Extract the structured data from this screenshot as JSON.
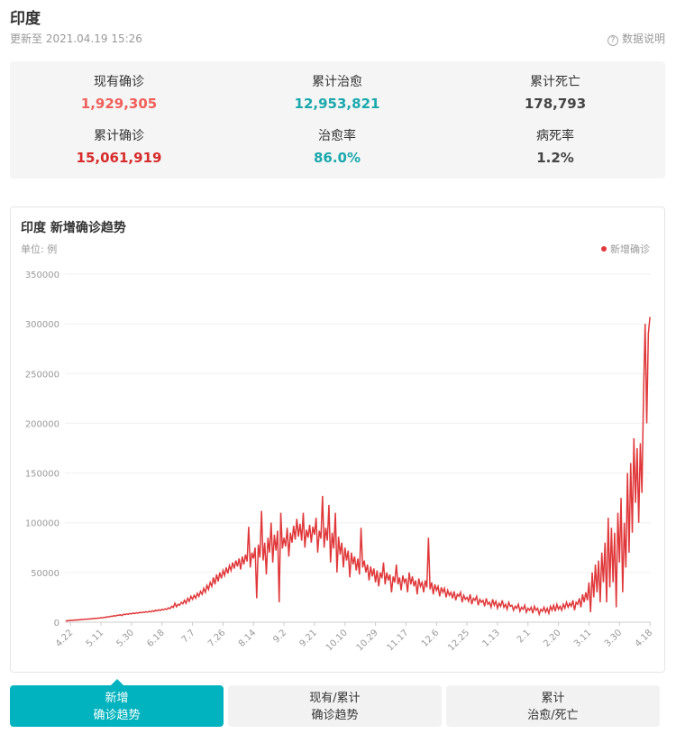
{
  "header": {
    "title": "印度",
    "updated": "更新至 2021.04.19 15:26",
    "help": "数据说明"
  },
  "summary": [
    {
      "label": "现有确诊",
      "value": "1,929,305",
      "color": "#f0605a"
    },
    {
      "label": "累计治愈",
      "value": "12,953,821",
      "color": "#1aa8ad"
    },
    {
      "label": "累计死亡",
      "value": "178,793",
      "color": "#444444"
    },
    {
      "label": "累计确诊",
      "value": "15,061,919",
      "color": "#d72b2b"
    },
    {
      "label": "治愈率",
      "value": "86.0%",
      "color": "#1aa8ad"
    },
    {
      "label": "病死率",
      "value": "1.2%",
      "color": "#444444"
    }
  ],
  "chart_data": {
    "type": "line",
    "title": "印度 新增确诊趋势",
    "unit": "单位: 例",
    "legend_position": "top-right",
    "grid": true,
    "ylim": [
      0,
      350000
    ],
    "yticks": [
      0,
      50000,
      100000,
      150000,
      200000,
      250000,
      300000,
      350000
    ],
    "categories": [
      null,
      null,
      null,
      "4.22",
      null,
      null,
      null,
      null,
      null,
      null,
      null,
      null,
      null,
      null,
      null,
      null,
      null,
      null,
      null,
      null,
      null,
      null,
      "5.11",
      null,
      null,
      null,
      null,
      null,
      null,
      null,
      null,
      null,
      null,
      null,
      null,
      null,
      null,
      null,
      null,
      null,
      null,
      "5.30",
      null,
      null,
      null,
      null,
      null,
      null,
      null,
      null,
      null,
      null,
      null,
      null,
      null,
      null,
      null,
      null,
      null,
      null,
      "6.18",
      null,
      null,
      null,
      null,
      null,
      null,
      null,
      null,
      null,
      null,
      null,
      null,
      null,
      null,
      null,
      null,
      null,
      null,
      "7.7",
      null,
      null,
      null,
      null,
      null,
      null,
      null,
      null,
      null,
      null,
      null,
      null,
      null,
      null,
      null,
      null,
      null,
      null,
      "7.26",
      null,
      null,
      null,
      null,
      null,
      null,
      null,
      null,
      null,
      null,
      null,
      null,
      null,
      null,
      null,
      null,
      null,
      null,
      "8.14",
      null,
      null,
      null,
      null,
      null,
      null,
      null,
      null,
      null,
      null,
      null,
      null,
      null,
      null,
      null,
      null,
      null,
      null,
      "9.2",
      null,
      null,
      null,
      null,
      null,
      null,
      null,
      null,
      null,
      null,
      null,
      null,
      null,
      null,
      null,
      null,
      null,
      null,
      "9.21",
      null,
      null,
      null,
      null,
      null,
      null,
      null,
      null,
      null,
      null,
      null,
      null,
      null,
      null,
      null,
      null,
      null,
      null,
      "10.10",
      null,
      null,
      null,
      null,
      null,
      null,
      null,
      null,
      null,
      null,
      null,
      null,
      null,
      null,
      null,
      null,
      null,
      null,
      "10.29",
      null,
      null,
      null,
      null,
      null,
      null,
      null,
      null,
      null,
      null,
      null,
      null,
      null,
      null,
      null,
      null,
      null,
      null,
      "11.17",
      null,
      null,
      null,
      null,
      null,
      null,
      null,
      null,
      null,
      null,
      null,
      null,
      null,
      null,
      null,
      null,
      null,
      null,
      "12.6",
      null,
      null,
      null,
      null,
      null,
      null,
      null,
      null,
      null,
      null,
      null,
      null,
      null,
      null,
      null,
      null,
      null,
      null,
      "12.25",
      null,
      null,
      null,
      null,
      null,
      null,
      null,
      null,
      null,
      null,
      null,
      null,
      null,
      null,
      null,
      null,
      null,
      null,
      "1.13",
      null,
      null,
      null,
      null,
      null,
      null,
      null,
      null,
      null,
      null,
      null,
      null,
      null,
      null,
      null,
      null,
      null,
      null,
      "2.1",
      null,
      null,
      null,
      null,
      null,
      null,
      null,
      null,
      null,
      null,
      null,
      null,
      null,
      null,
      null,
      null,
      null,
      null,
      "2.20",
      null,
      null,
      null,
      null,
      null,
      null,
      null,
      null,
      null,
      null,
      null,
      null,
      null,
      null,
      null,
      null,
      null,
      null,
      "3.11",
      null,
      null,
      null,
      null,
      null,
      null,
      null,
      null,
      null,
      null,
      null,
      null,
      null,
      null,
      null,
      null,
      null,
      null,
      "3.30",
      null,
      null,
      null,
      null,
      null,
      null,
      null,
      null,
      null,
      null,
      null,
      null,
      null,
      null,
      null,
      null,
      null,
      null,
      "4.18"
    ],
    "series": [
      {
        "name": "新增确诊",
        "color": "#e0383a",
        "values": [
          1500,
          1300,
          1800,
          1600,
          2000,
          1900,
          2300,
          2100,
          2500,
          2400,
          2800,
          2600,
          3100,
          2900,
          3300,
          3100,
          3600,
          3400,
          3900,
          3700,
          4200,
          4000,
          4500,
          4300,
          5000,
          4800,
          5500,
          5200,
          6000,
          5800,
          6500,
          6200,
          7000,
          6800,
          7500,
          6600,
          8000,
          7600,
          8400,
          8000,
          8800,
          8300,
          9200,
          8700,
          9500,
          9000,
          9900,
          9400,
          10200,
          9800,
          10500,
          10000,
          11000,
          10300,
          11500,
          10800,
          12000,
          11400,
          12500,
          11800,
          13000,
          12400,
          13500,
          12800,
          14500,
          13600,
          16000,
          14800,
          19000,
          15500,
          18000,
          17000,
          20000,
          18500,
          22000,
          19000,
          24000,
          21000,
          26000,
          23000,
          27000,
          24000,
          29000,
          26000,
          31000,
          28000,
          34000,
          30000,
          37000,
          33000,
          40000,
          36000,
          45000,
          38000,
          48000,
          41000,
          50000,
          44000,
          52000,
          47000,
          55000,
          49000,
          57000,
          52000,
          60000,
          54000,
          62000,
          56000,
          64000,
          53000,
          66000,
          58000,
          68000,
          61000,
          96000,
          55000,
          70000,
          64000,
          75000,
          24000,
          78000,
          65000,
          112000,
          62000,
          80000,
          48000,
          85000,
          70000,
          100000,
          60000,
          88000,
          72000,
          92000,
          20000,
          110000,
          74000,
          85000,
          76000,
          95000,
          66000,
          90000,
          80000,
          97000,
          83000,
          104000,
          86000,
          99000,
          82000,
          110000,
          75000,
          93000,
          85000,
          98000,
          80000,
          96000,
          88000,
          105000,
          70000,
          92000,
          84000,
          127000,
          75000,
          95000,
          82000,
          118000,
          60000,
          90000,
          74000,
          110000,
          50000,
          86000,
          68000,
          80000,
          55000,
          75000,
          62000,
          72000,
          45000,
          70000,
          58000,
          66000,
          52000,
          64000,
          48000,
          95000,
          55000,
          62000,
          50000,
          58000,
          42000,
          56000,
          46000,
          54000,
          40000,
          52000,
          36000,
          50000,
          44000,
          60000,
          38000,
          50000,
          42000,
          48000,
          30000,
          46000,
          40000,
          58000,
          38000,
          45000,
          32000,
          47000,
          40000,
          44000,
          30000,
          50000,
          38000,
          46000,
          36000,
          42000,
          28000,
          44000,
          36000,
          40000,
          30000,
          42000,
          35000,
          85000,
          33000,
          40000,
          28000,
          38000,
          32000,
          36000,
          26000,
          35000,
          30000,
          34000,
          25000,
          32000,
          27000,
          30000,
          24000,
          31000,
          22000,
          28000,
          26000,
          30000,
          20000,
          27000,
          23000,
          25000,
          21000,
          28000,
          18000,
          24000,
          22000,
          26000,
          17000,
          23000,
          20000,
          22000,
          16000,
          24000,
          18000,
          20000,
          15000,
          23000,
          17000,
          21000,
          14000,
          19000,
          16000,
          22000,
          15000,
          18000,
          13000,
          20000,
          16000,
          17000,
          12000,
          16000,
          14000,
          18000,
          11000,
          15000,
          13000,
          17000,
          10000,
          14000,
          12000,
          15000,
          9000,
          16000,
          12000,
          14000,
          8000,
          13000,
          11000,
          15000,
          10000,
          14000,
          9000,
          16000,
          12000,
          17000,
          11000,
          18000,
          13000,
          16000,
          12000,
          18000,
          14000,
          20000,
          15000,
          19000,
          16000,
          22000,
          12000,
          20000,
          18000,
          24000,
          15000,
          28000,
          20000,
          30000,
          22000,
          40000,
          10000,
          50000,
          25000,
          58000,
          30000,
          62000,
          20000,
          70000,
          40000,
          80000,
          20000,
          105000,
          35000,
          95000,
          40000,
          90000,
          15000,
          110000,
          60000,
          125000,
          30000,
          100000,
          55000,
          150000,
          70000,
          160000,
          90000,
          185000,
          120000,
          175000,
          100000,
          180000,
          130000,
          230000,
          300000,
          200000,
          290000,
          307000
        ]
      }
    ]
  },
  "tabs": [
    [
      "新增",
      "确诊趋势"
    ],
    [
      "现有/累计",
      "确诊趋势"
    ],
    [
      "累计",
      "治愈/死亡"
    ]
  ]
}
